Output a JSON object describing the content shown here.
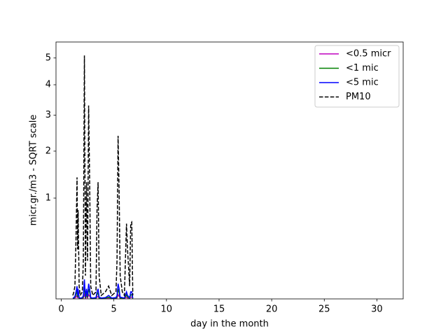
{
  "chart_data": {
    "type": "line",
    "xlabel": "day in the month",
    "ylabel": "micr.gr./m3 - SQRT scale",
    "yscale": "sqrt",
    "xlim": [
      -0.5,
      32.5
    ],
    "ylim": [
      0.0123,
      5.65
    ],
    "xticks": [
      0,
      5,
      10,
      15,
      20,
      25,
      30
    ],
    "yticks": [
      1,
      2,
      3,
      4,
      5
    ],
    "legend": "upper right",
    "x": [
      1.1,
      1.2,
      1.3,
      1.4,
      1.5,
      1.55,
      1.6,
      1.7,
      1.8,
      2.0,
      2.1,
      2.2,
      2.3,
      2.4,
      2.5,
      2.6,
      2.7,
      2.8,
      3.0,
      3.3,
      3.4,
      3.5,
      3.6,
      3.8,
      4.2,
      4.5,
      4.8,
      5.2,
      5.3,
      5.4,
      5.5,
      5.6,
      5.8,
      6.0,
      6.2,
      6.3,
      6.5,
      6.6,
      6.7,
      6.8
    ],
    "series": [
      {
        "name": "<0.5 micr",
        "color": "#bf00bf",
        "linestyle": "solid",
        "values": [
          0.013,
          0.013,
          0.014,
          0.016,
          0.02,
          0.014,
          0.018,
          0.013,
          0.013,
          0.013,
          0.014,
          0.025,
          0.013,
          0.018,
          0.014,
          0.022,
          0.018,
          0.013,
          0.013,
          0.013,
          0.016,
          0.018,
          0.013,
          0.013,
          0.013,
          0.014,
          0.013,
          0.013,
          0.014,
          0.022,
          0.018,
          0.013,
          0.013,
          0.013,
          0.016,
          0.014,
          0.013,
          0.016,
          0.016,
          0.013
        ]
      },
      {
        "name": "<1 mic",
        "color": "#008000",
        "linestyle": "solid",
        "values": [
          0.013,
          0.014,
          0.016,
          0.022,
          0.035,
          0.016,
          0.028,
          0.014,
          0.013,
          0.014,
          0.016,
          0.05,
          0.014,
          0.028,
          0.015,
          0.04,
          0.028,
          0.014,
          0.013,
          0.014,
          0.022,
          0.028,
          0.014,
          0.013,
          0.014,
          0.016,
          0.013,
          0.014,
          0.016,
          0.04,
          0.028,
          0.014,
          0.014,
          0.013,
          0.022,
          0.016,
          0.014,
          0.022,
          0.022,
          0.013
        ]
      },
      {
        "name": "<5 mic",
        "color": "#0000ff",
        "linestyle": "solid",
        "values": [
          0.014,
          0.015,
          0.018,
          0.03,
          0.05,
          0.02,
          0.04,
          0.015,
          0.014,
          0.015,
          0.02,
          0.08,
          0.016,
          0.04,
          0.018,
          0.06,
          0.04,
          0.015,
          0.014,
          0.015,
          0.03,
          0.04,
          0.016,
          0.014,
          0.015,
          0.02,
          0.014,
          0.015,
          0.02,
          0.06,
          0.04,
          0.016,
          0.015,
          0.014,
          0.03,
          0.02,
          0.015,
          0.03,
          0.03,
          0.014
        ]
      },
      {
        "name": "PM10",
        "color": "#000000",
        "linestyle": "dashed",
        "values": [
          0.02,
          0.03,
          0.05,
          0.4,
          1.4,
          0.3,
          0.8,
          0.05,
          0.02,
          0.03,
          0.2,
          5.1,
          0.1,
          1.3,
          0.2,
          3.3,
          1.3,
          0.05,
          0.02,
          0.03,
          0.8,
          1.3,
          0.1,
          0.02,
          0.03,
          0.05,
          0.02,
          0.03,
          0.2,
          2.4,
          1.1,
          0.1,
          0.03,
          0.02,
          0.6,
          0.3,
          0.05,
          0.6,
          0.62,
          0.02
        ]
      }
    ]
  }
}
